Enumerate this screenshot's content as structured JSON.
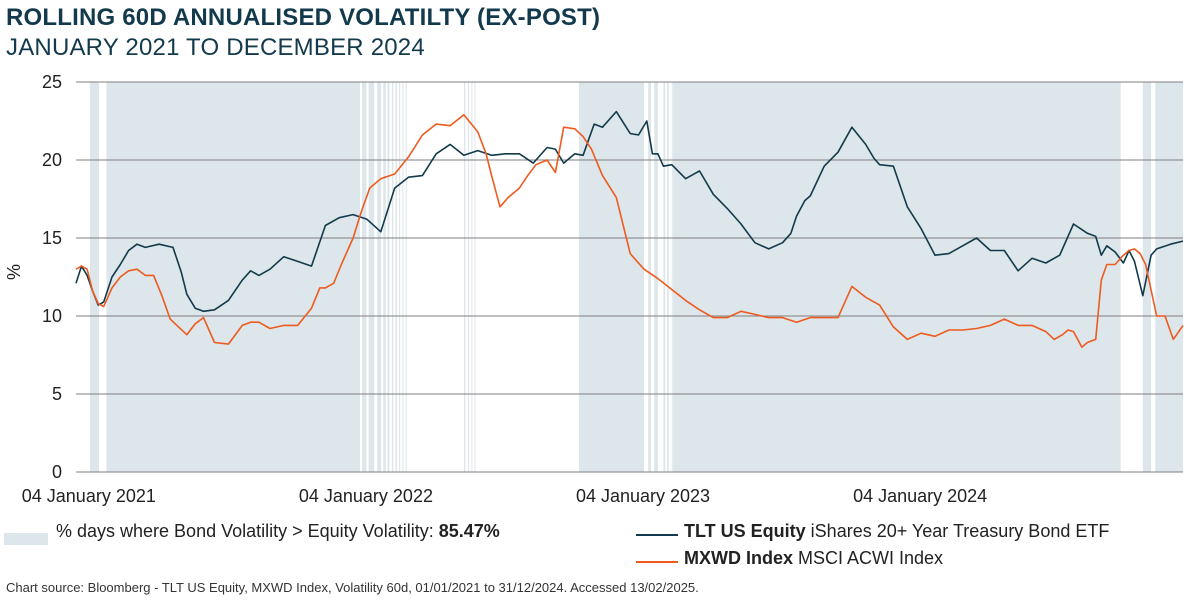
{
  "title": "ROLLING 60D ANNUALISED VOLATILTY (EX-POST)",
  "subtitle": "JANUARY 2021 TO DECEMBER 2024",
  "source": "Chart source: Bloomberg - TLT US Equity, MXWD Index, Volatility 60d, 01/01/2021 to 31/12/2024. Accessed 13/02/2025.",
  "legend": {
    "shade_label": "% days where Bond Volatility > Equity Volatility: ",
    "shade_value": "85.47%",
    "tlt_name": "TLT US Equity",
    "tlt_desc": " iShares 20+ Year Treasury Bond ETF",
    "mxwd_name": "MXWD Index",
    "mxwd_desc": " MSCI ACWI Index"
  },
  "colors": {
    "title": "#123a4c",
    "tlt_line": "#123a4c",
    "mxwd_line": "#ee5a1f",
    "shade": "#dde6ea",
    "grid": "#7f7f7f"
  },
  "chart_data": {
    "type": "line",
    "title": "ROLLING 60D ANNUALISED VOLATILTY (EX-POST)",
    "subtitle": "JANUARY 2021 TO DECEMBER 2024",
    "ylabel": "%",
    "ylim": [
      0,
      25
    ],
    "yticks": [
      "0",
      "5",
      "10",
      "15",
      "20",
      "25"
    ],
    "xlim": [
      2021.0,
      2024.995
    ],
    "x_ticks": [
      {
        "x": 2021.003,
        "label": "04 January 2021"
      },
      {
        "x": 2022.003,
        "label": "04 January 2022"
      },
      {
        "x": 2023.003,
        "label": "04 January 2023"
      },
      {
        "x": 2024.003,
        "label": "04 January 2024"
      }
    ],
    "shaded_regions_note": "Shaded where TLT volatility > MXWD volatility",
    "shaded_regions": [
      [
        2021.05,
        2021.083
      ],
      [
        2021.11,
        2022.025
      ],
      [
        2022.032,
        2022.048
      ],
      [
        2022.056,
        2022.076
      ],
      [
        2022.087,
        2022.101
      ],
      [
        2022.109,
        2022.118
      ],
      [
        2022.124,
        2022.131
      ],
      [
        2022.14,
        2022.145
      ],
      [
        2022.153,
        2022.158
      ],
      [
        2022.166,
        2022.17
      ],
      [
        2022.178,
        2022.181
      ],
      [
        2022.19,
        2022.193
      ],
      [
        2022.4,
        2022.405
      ],
      [
        2022.414,
        2022.418
      ],
      [
        2022.427,
        2022.43
      ],
      [
        2022.438,
        2022.441
      ],
      [
        2022.815,
        2023.05
      ],
      [
        2023.065,
        2023.075
      ],
      [
        2023.087,
        2023.1
      ],
      [
        2023.12,
        2023.12
      ],
      [
        2023.123,
        2023.126
      ],
      [
        2023.133,
        2023.139
      ],
      [
        2023.15,
        2023.152
      ],
      [
        2023.155,
        2024.77
      ],
      [
        2024.85,
        2024.88
      ],
      [
        2024.895,
        2024.995
      ]
    ],
    "series": [
      {
        "name": "TLT US Equity",
        "x": [
          2021.0,
          2021.02,
          2021.04,
          2021.06,
          2021.08,
          2021.1,
          2021.13,
          2021.16,
          2021.19,
          2021.22,
          2021.25,
          2021.3,
          2021.35,
          2021.38,
          2021.4,
          2021.43,
          2021.46,
          2021.5,
          2021.55,
          2021.6,
          2021.63,
          2021.66,
          2021.7,
          2021.75,
          2021.8,
          2021.85,
          2021.9,
          2021.95,
          2022.0,
          2022.05,
          2022.1,
          2022.15,
          2022.2,
          2022.25,
          2022.3,
          2022.35,
          2022.4,
          2022.45,
          2022.5,
          2022.55,
          2022.6,
          2022.65,
          2022.7,
          2022.73,
          2022.76,
          2022.8,
          2022.83,
          2022.85,
          2022.87,
          2022.9,
          2022.95,
          2023.0,
          2023.03,
          2023.06,
          2023.08,
          2023.1,
          2023.12,
          2023.15,
          2023.2,
          2023.25,
          2023.3,
          2023.35,
          2023.4,
          2023.45,
          2023.5,
          2023.55,
          2023.58,
          2023.6,
          2023.63,
          2023.65,
          2023.7,
          2023.75,
          2023.8,
          2023.85,
          2023.88,
          2023.9,
          2023.95,
          2024.0,
          2024.05,
          2024.1,
          2024.15,
          2024.2,
          2024.25,
          2024.3,
          2024.35,
          2024.4,
          2024.45,
          2024.5,
          2024.55,
          2024.6,
          2024.65,
          2024.68,
          2024.7,
          2024.72,
          2024.75,
          2024.78,
          2024.8,
          2024.82,
          2024.85,
          2024.88,
          2024.9,
          2024.95,
          2024.995
        ],
        "values": [
          12.1,
          13.2,
          12.6,
          11.6,
          10.7,
          10.9,
          12.5,
          13.3,
          14.2,
          14.6,
          14.4,
          14.6,
          14.4,
          12.8,
          11.4,
          10.5,
          10.3,
          10.4,
          11.0,
          12.3,
          12.9,
          12.6,
          13.0,
          13.8,
          13.5,
          13.2,
          15.8,
          16.3,
          16.5,
          16.2,
          15.4,
          18.2,
          18.9,
          19.0,
          20.4,
          21.0,
          20.3,
          20.6,
          20.3,
          20.4,
          20.4,
          19.8,
          20.8,
          20.7,
          19.8,
          20.4,
          20.3,
          21.3,
          22.3,
          22.1,
          23.1,
          21.7,
          21.6,
          22.5,
          20.4,
          20.4,
          19.6,
          19.7,
          18.8,
          19.3,
          17.8,
          16.9,
          15.9,
          14.7,
          14.3,
          14.7,
          15.3,
          16.4,
          17.4,
          17.7,
          19.6,
          20.5,
          22.1,
          21.0,
          20.1,
          19.7,
          19.6,
          17.0,
          15.6,
          13.9,
          14.0,
          14.5,
          15.0,
          14.2,
          14.2,
          12.9,
          13.7,
          13.4,
          13.9,
          15.9,
          15.3,
          15.1,
          13.9,
          14.5,
          14.1,
          13.4,
          14.2,
          13.5,
          11.3,
          13.9,
          14.3,
          14.6,
          14.8
        ]
      },
      {
        "name": "MXWD Index",
        "x": [
          2021.0,
          2021.02,
          2021.04,
          2021.06,
          2021.08,
          2021.1,
          2021.13,
          2021.16,
          2021.19,
          2021.22,
          2021.25,
          2021.28,
          2021.31,
          2021.34,
          2021.37,
          2021.4,
          2021.43,
          2021.46,
          2021.5,
          2021.55,
          2021.6,
          2021.63,
          2021.66,
          2021.7,
          2021.75,
          2021.8,
          2021.85,
          2021.88,
          2021.9,
          2021.93,
          2021.96,
          2022.0,
          2022.03,
          2022.06,
          2022.1,
          2022.15,
          2022.2,
          2022.25,
          2022.3,
          2022.35,
          2022.4,
          2022.45,
          2022.48,
          2022.5,
          2022.53,
          2022.56,
          2022.6,
          2022.63,
          2022.66,
          2022.7,
          2022.73,
          2022.76,
          2022.8,
          2022.83,
          2022.86,
          2022.9,
          2022.95,
          2023.0,
          2023.05,
          2023.1,
          2023.15,
          2023.2,
          2023.25,
          2023.3,
          2023.35,
          2023.4,
          2023.45,
          2023.5,
          2023.55,
          2023.6,
          2023.65,
          2023.7,
          2023.75,
          2023.8,
          2023.85,
          2023.9,
          2023.95,
          2024.0,
          2024.05,
          2024.1,
          2024.15,
          2024.2,
          2024.25,
          2024.3,
          2024.35,
          2024.4,
          2024.45,
          2024.5,
          2024.53,
          2024.56,
          2024.58,
          2024.6,
          2024.63,
          2024.65,
          2024.68,
          2024.7,
          2024.72,
          2024.75,
          2024.78,
          2024.8,
          2024.82,
          2024.84,
          2024.86,
          2024.9,
          2024.93,
          2024.96,
          2024.995
        ],
        "values": [
          13.0,
          13.2,
          13.0,
          11.6,
          10.8,
          10.6,
          11.8,
          12.5,
          12.9,
          13.0,
          12.6,
          12.6,
          11.3,
          9.8,
          9.3,
          8.8,
          9.5,
          9.9,
          8.3,
          8.2,
          9.4,
          9.6,
          9.6,
          9.2,
          9.4,
          9.4,
          10.5,
          11.8,
          11.8,
          12.1,
          13.4,
          15.0,
          16.7,
          18.2,
          18.8,
          19.1,
          20.2,
          21.6,
          22.3,
          22.2,
          22.9,
          21.8,
          20.4,
          19.0,
          17.0,
          17.6,
          18.2,
          19.0,
          19.7,
          20.0,
          19.2,
          22.1,
          22.0,
          21.5,
          20.7,
          19.0,
          17.6,
          14.0,
          13.0,
          12.4,
          11.7,
          11.0,
          10.4,
          9.9,
          9.9,
          10.3,
          10.1,
          9.9,
          9.9,
          9.6,
          9.9,
          9.9,
          9.9,
          11.9,
          11.2,
          10.7,
          9.3,
          8.5,
          8.9,
          8.7,
          9.1,
          9.1,
          9.2,
          9.4,
          9.8,
          9.4,
          9.4,
          9.0,
          8.5,
          8.8,
          9.1,
          9.0,
          8.0,
          8.3,
          8.5,
          12.3,
          13.3,
          13.3,
          13.9,
          14.2,
          14.3,
          14.0,
          13.3,
          10.0,
          10.0,
          8.5,
          9.4
        ]
      }
    ]
  }
}
